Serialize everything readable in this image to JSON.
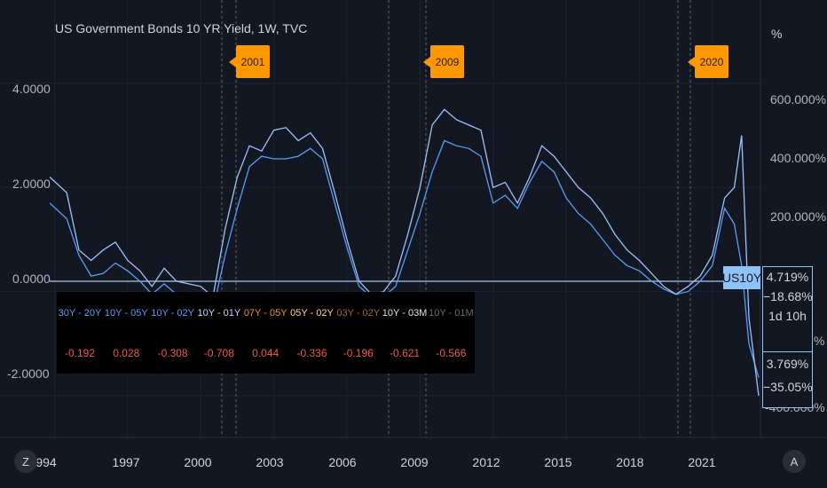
{
  "title": "US Government Bonds 10 YR Yield, 1W, TVC",
  "left_axis": {
    "labels": [
      "4.0000",
      "2.0000",
      "0.0000",
      "-2.0000"
    ]
  },
  "right_axis": {
    "unit": "%",
    "labels": [
      "600.000%",
      "400.000%",
      "200.000%",
      "%",
      "-400.000%"
    ]
  },
  "x_axis": {
    "labels": [
      "994",
      "1997",
      "2000",
      "2003",
      "2006",
      "2009",
      "2012",
      "2015",
      "2018",
      "2021"
    ]
  },
  "event_flags": [
    "2001",
    "2009",
    "2020"
  ],
  "spread_table": {
    "headers": [
      {
        "text": "30Y - 20Y",
        "color": "#5b9cf6"
      },
      {
        "text": "10Y - 05Y",
        "color": "#5b9cf6"
      },
      {
        "text": "10Y - 02Y",
        "color": "#5b9cf6"
      },
      {
        "text": "10Y - 01Y",
        "color": "#c3d6ff"
      },
      {
        "text": "07Y - 05Y",
        "color": "#f7931a"
      },
      {
        "text": "05Y - 02Y",
        "color": "#ffd591"
      },
      {
        "text": "03Y - 02Y",
        "color": "#9e6a3a"
      },
      {
        "text": "10Y - 03M",
        "color": "#e0e3eb"
      },
      {
        "text": "10Y - 01M",
        "color": "#6a6d78"
      }
    ],
    "values": [
      "-0.192",
      "0.028",
      "-0.308",
      "-0.708",
      "0.044",
      "-0.336",
      "-0.196",
      "-0.621",
      "-0.566"
    ]
  },
  "symbol_tag": {
    "symbol": "US10Y",
    "value": "4.719%",
    "change": "−18.68%",
    "countdown": "1d 10h",
    "compare_value": "3.769%",
    "compare_change": "−35.05%"
  },
  "buttons": {
    "left": "Z",
    "right": "A"
  },
  "colors": {
    "main_series": "#5b9cf6",
    "compare_series": "#9aa0b0",
    "flag": "#ff9800",
    "background": "#131722"
  },
  "chart_data": {
    "type": "line",
    "title": "US Government Bonds 10 YR Yield, 1W, TVC",
    "x_range": [
      1993.8,
      2022.9
    ],
    "y_range_left": [
      -2.8,
      5.6
    ],
    "series": [
      {
        "x": [
          1993.8,
          1994.5,
          1995.0,
          1995.5,
          1996.0,
          1996.5,
          1997.0,
          1997.5,
          1998.0,
          1998.5,
          1999.0,
          1999.5,
          2000.0,
          2000.5,
          2001.0,
          2001.5,
          2002.0,
          2002.5,
          2003.0,
          2003.5,
          2004.0,
          2004.5,
          2005.0,
          2005.5,
          2006.0,
          2006.5,
          2007.0,
          2007.5,
          2008.0,
          2008.5,
          2009.0,
          2009.5,
          2010.0,
          2010.5,
          2011.0,
          2011.5,
          2012.0,
          2012.5,
          2013.0,
          2013.5,
          2014.0,
          2014.5,
          2015.0,
          2015.5,
          2016.0,
          2016.5,
          2017.0,
          2017.5,
          2018.0,
          2018.5,
          2019.0,
          2019.5,
          2020.0,
          2020.5,
          2021.0,
          2021.5,
          2021.9,
          2022.2,
          2022.5,
          2022.9
        ],
        "values": [
          1.7,
          1.4,
          0.7,
          0.3,
          0.35,
          0.55,
          0.4,
          0.2,
          -0.05,
          0.15,
          -0.05,
          -0.2,
          -0.3,
          -0.35,
          0.7,
          1.6,
          2.4,
          2.6,
          2.55,
          2.55,
          2.6,
          2.75,
          2.55,
          1.7,
          0.85,
          0.1,
          -0.1,
          -0.1,
          0.1,
          0.8,
          1.5,
          2.3,
          2.9,
          2.8,
          2.75,
          2.6,
          1.7,
          1.85,
          1.6,
          2.1,
          2.5,
          2.3,
          1.8,
          1.5,
          1.3,
          1.0,
          0.7,
          0.5,
          0.4,
          0.2,
          0.05,
          -0.05,
          0.0,
          0.2,
          0.5,
          1.6,
          1.3,
          0.5,
          -1.0,
          -1.65
        ]
      },
      {
        "x": [
          1993.8,
          1994.5,
          1995.0,
          1995.5,
          1996.0,
          1996.5,
          1997.0,
          1997.5,
          1998.0,
          1998.5,
          1999.0,
          1999.5,
          2000.0,
          2000.5,
          2001.0,
          2001.5,
          2002.0,
          2002.5,
          2003.0,
          2003.5,
          2004.0,
          2004.5,
          2005.0,
          2005.5,
          2006.0,
          2006.5,
          2007.0,
          2007.5,
          2008.0,
          2008.5,
          2009.0,
          2009.5,
          2010.0,
          2010.5,
          2011.0,
          2011.5,
          2012.0,
          2012.5,
          2013.0,
          2013.5,
          2014.0,
          2014.5,
          2015.0,
          2015.5,
          2016.0,
          2016.5,
          2017.0,
          2017.5,
          2018.0,
          2018.5,
          2019.0,
          2019.5,
          2020.0,
          2020.5,
          2021.0,
          2021.5,
          2021.9,
          2022.2,
          2022.5,
          2022.9
        ],
        "values": [
          2.2,
          1.9,
          0.8,
          0.6,
          0.8,
          0.95,
          0.6,
          0.4,
          0.1,
          0.45,
          0.2,
          0.15,
          0.1,
          -0.1,
          1.2,
          2.2,
          2.8,
          2.7,
          3.1,
          3.15,
          2.9,
          3.05,
          2.75,
          1.9,
          1.0,
          0.2,
          -0.05,
          0.0,
          0.3,
          1.1,
          2.0,
          3.2,
          3.5,
          3.3,
          3.2,
          3.1,
          2.0,
          2.1,
          1.7,
          2.2,
          2.8,
          2.6,
          2.3,
          2.0,
          1.8,
          1.5,
          1.1,
          0.8,
          0.6,
          0.35,
          0.1,
          -0.05,
          0.1,
          0.3,
          0.7,
          1.8,
          2.0,
          3.0,
          -0.5,
          -2.0
        ]
      }
    ]
  }
}
